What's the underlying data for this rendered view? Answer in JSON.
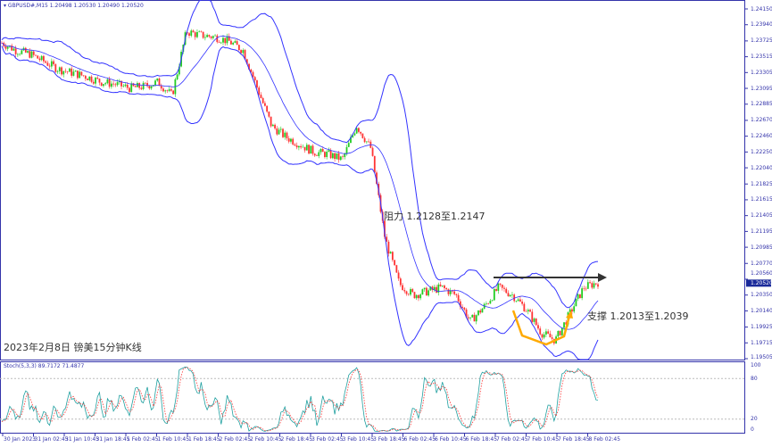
{
  "header": {
    "symbol": "GBPUSD#,M15",
    "ohlc": "1.20498 1.20530 1.20490 1.20520"
  },
  "stoch": {
    "label": "Stoch(5,3,3) 89.7172 71.4877"
  },
  "annotations": {
    "title": "2023年2月8日 镑美15分钟K线",
    "resistance": "阻力 1.2128至1.2147",
    "support": "支撑 1.2013至1.2039"
  },
  "colors": {
    "bands": "#3333ff",
    "up": "#22cc22",
    "down": "#ff3333",
    "stoch_main": "#20a0a0",
    "stoch_signal": "#ff3333",
    "arrow": "#333333",
    "support_arrow": "#ffaa00",
    "price_tag": "#1a2a9a"
  },
  "chart_data": {
    "type": "candlestick",
    "price_axis": {
      "ticks": [
        "1.24150",
        "1.23940",
        "1.23725",
        "1.23515",
        "1.23305",
        "1.23095",
        "1.22885",
        "1.22670",
        "1.22460",
        "1.22250",
        "1.22040",
        "1.21825",
        "1.21615",
        "1.21405",
        "1.21195",
        "1.20985",
        "1.20770",
        "1.20560",
        "1.20350",
        "1.20140",
        "1.19925",
        "1.19715",
        "1.19505"
      ],
      "current": "1.20520"
    },
    "stoch_axis": {
      "ticks": [
        "100",
        "80",
        "20",
        "0"
      ]
    },
    "time_axis": {
      "ticks": [
        "30 Jan 2023",
        "31 Jan 02:45",
        "31 Jan 10:45",
        "31 Jan 18:45",
        "1 Feb 02:45",
        "1 Feb 10:45",
        "1 Feb 18:45",
        "2 Feb 02:45",
        "2 Feb 10:45",
        "2 Feb 18:45",
        "3 Feb 02:45",
        "3 Feb 10:45",
        "3 Feb 18:45",
        "6 Feb 02:45",
        "6 Feb 10:45",
        "6 Feb 18:45",
        "7 Feb 02:45",
        "7 Feb 10:45",
        "7 Feb 18:45",
        "8 Feb 02:45"
      ]
    },
    "approx_close_path": [
      1.237,
      1.236,
      1.2355,
      1.2345,
      1.2335,
      1.233,
      1.2325,
      1.2318,
      1.2315,
      1.231,
      1.2312,
      1.2318,
      1.23,
      1.2385,
      1.238,
      1.2378,
      1.2372,
      1.236,
      1.231,
      1.226,
      1.2245,
      1.2235,
      1.2225,
      1.2222,
      1.2215,
      1.226,
      1.223,
      1.211,
      1.205,
      1.2035,
      1.204,
      1.2045,
      1.2035,
      1.2,
      1.202,
      1.2045,
      1.2035,
      1.2015,
      1.1985,
      1.1975,
      1.201,
      1.2045,
      1.2052
    ]
  }
}
